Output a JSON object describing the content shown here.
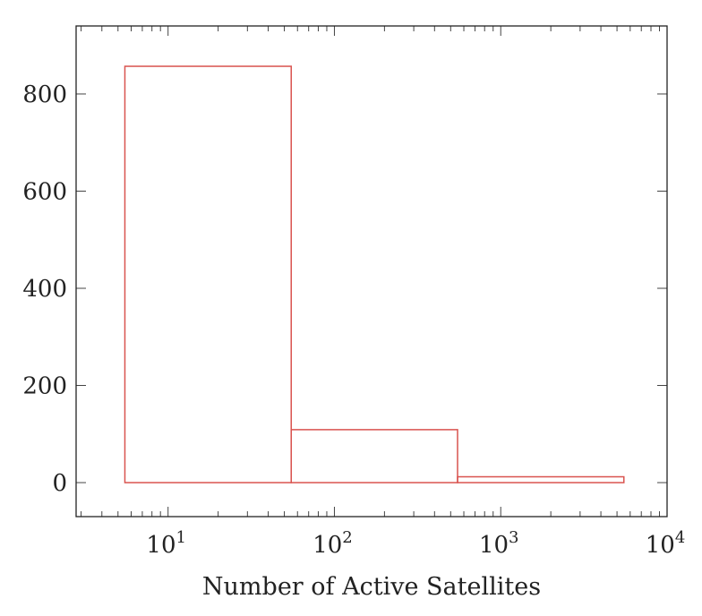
{
  "chart_data": {
    "type": "bar",
    "title": "",
    "xlabel": "Number of Active Satellites",
    "ylabel": "",
    "x_scale": "log",
    "xlim": [
      2.8,
      10000
    ],
    "ylim": [
      -70,
      940
    ],
    "bins": [
      {
        "x0": 5.5,
        "x1": 55,
        "value": 857
      },
      {
        "x0": 55,
        "x1": 550,
        "value": 109
      },
      {
        "x0": 550,
        "x1": 5500,
        "value": 12
      }
    ],
    "y_ticks": [
      0,
      200,
      400,
      600,
      800
    ],
    "x_ticks": [
      {
        "value": 10,
        "base": "10",
        "exp": "1"
      },
      {
        "value": 100,
        "base": "10",
        "exp": "2"
      },
      {
        "value": 1000,
        "base": "10",
        "exp": "3"
      },
      {
        "value": 10000,
        "base": "10",
        "exp": "4"
      }
    ],
    "bar_color": "#d9534f",
    "grid": false,
    "legend": "none"
  }
}
